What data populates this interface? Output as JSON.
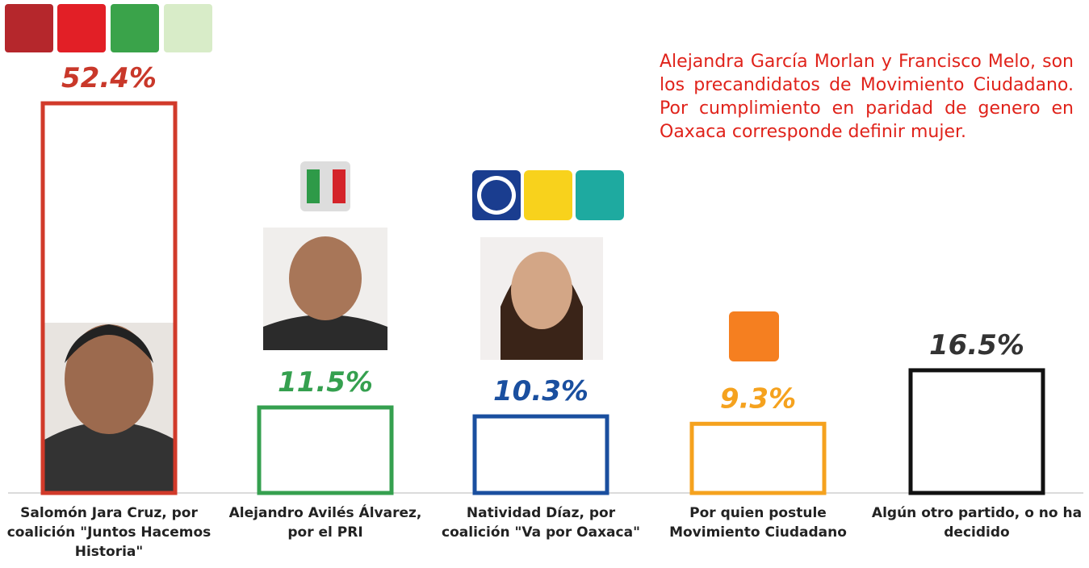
{
  "chart_data": {
    "type": "bar",
    "annotation": "Alejandra García Morlan y Francisco Melo, son los precandidatos de Movimiento Ciudadano. Por cumplimiento en paridad de genero en Oaxaca corresponde definir mujer.",
    "categories": [
      "Salomón Jara Cruz, por coalición \"Juntos Hacemos Historia\"",
      "Alejandro Avilés Álvarez, por el PRI",
      "Natividad Díaz, por coalición \"Va por Oaxaca\"",
      "Por quien postule Movimiento Ciudadano",
      "Algún otro partido, o no ha decidido"
    ],
    "values": [
      52.4,
      11.5,
      10.3,
      9.3,
      16.5
    ],
    "value_labels": [
      "52.4%",
      "11.5%",
      "10.3%",
      "9.3%",
      "16.5%"
    ],
    "colors": [
      "#d13a2a",
      "#35a04f",
      "#1a4f9f",
      "#f5a21e",
      "#111111"
    ],
    "label_colors": [
      "#c9382a",
      "#35a04f",
      "#1a4f9f",
      "#f5a21e",
      "#333333"
    ],
    "ylim": [
      0,
      60
    ]
  }
}
